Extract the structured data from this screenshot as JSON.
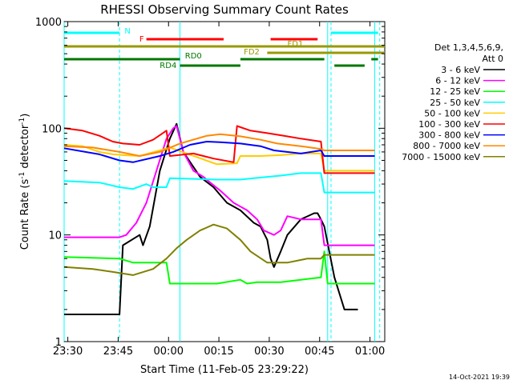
{
  "chart_data": {
    "type": "line",
    "title": "RHESSI Observing Summary Count Rates",
    "xlabel": "Start Time (11-Feb-05 23:29:22)",
    "ylabel_main": "Count Rate (s",
    "ylabel_sup1": "-1",
    "ylabel_mid": " detector",
    "ylabel_sup2": "-1",
    "ylabel_end": ")",
    "y_scale": "log",
    "ylim": [
      1,
      1000
    ],
    "xlim_min": [
      -0.5,
      95
    ],
    "x_ticks": [
      {
        "min": 0.6,
        "label": "23:30"
      },
      {
        "min": 15.6,
        "label": "23:45"
      },
      {
        "min": 30.6,
        "label": "00:00"
      },
      {
        "min": 45.6,
        "label": "00:15"
      },
      {
        "min": 60.6,
        "label": "00:30"
      },
      {
        "min": 75.6,
        "label": "00:45"
      },
      {
        "min": 90.6,
        "label": "01:00"
      }
    ],
    "y_ticks": [
      {
        "value": 1,
        "label": "1"
      },
      {
        "value": 10,
        "label": "10"
      },
      {
        "value": 100,
        "label": "100"
      },
      {
        "value": 1000,
        "label": "1000"
      }
    ],
    "legend": {
      "header1": "Det 1,3,4,5,6,9,",
      "header2": "Att 0",
      "placement": "right"
    },
    "series": [
      {
        "name": "3 - 6 keV",
        "color": "#000000",
        "points": [
          [
            -0.5,
            1.8
          ],
          [
            16,
            1.8
          ],
          [
            17,
            8
          ],
          [
            22,
            10
          ],
          [
            23,
            8
          ],
          [
            25,
            12
          ],
          [
            28,
            40
          ],
          [
            31,
            80
          ],
          [
            33,
            110
          ],
          [
            35,
            60
          ],
          [
            40,
            35
          ],
          [
            44,
            28
          ],
          [
            48,
            20
          ],
          [
            52,
            17
          ],
          [
            56,
            13
          ],
          [
            58,
            12
          ],
          [
            60,
            9
          ],
          [
            61,
            6
          ],
          [
            62,
            5
          ],
          [
            64,
            7
          ],
          [
            66,
            10
          ],
          [
            70,
            14
          ],
          [
            74,
            16
          ],
          [
            75,
            16
          ],
          [
            76,
            14
          ],
          [
            77,
            12
          ],
          [
            80,
            4
          ],
          [
            83,
            2
          ],
          [
            86,
            2
          ],
          [
            87,
            2
          ]
        ]
      },
      {
        "name": "6 - 12 keV",
        "color": "#ff00ff",
        "points": [
          [
            -0.5,
            9.5
          ],
          [
            16,
            9.5
          ],
          [
            18,
            10
          ],
          [
            21,
            13
          ],
          [
            24,
            20
          ],
          [
            27,
            40
          ],
          [
            30,
            80
          ],
          [
            32,
            100
          ],
          [
            33,
            105
          ],
          [
            35,
            60
          ],
          [
            38,
            40
          ],
          [
            41,
            35
          ],
          [
            43,
            31
          ],
          [
            46,
            26
          ],
          [
            50,
            20
          ],
          [
            54,
            17
          ],
          [
            57,
            14
          ],
          [
            59,
            11
          ],
          [
            62,
            10
          ],
          [
            64,
            11
          ],
          [
            66,
            15
          ],
          [
            70,
            14
          ],
          [
            74,
            14
          ],
          [
            76,
            14
          ],
          [
            77,
            8
          ],
          [
            92,
            8
          ]
        ]
      },
      {
        "name": "12 - 25 keV",
        "color": "#00ff00",
        "points": [
          [
            -0.5,
            6.2
          ],
          [
            16,
            6
          ],
          [
            20,
            5.5
          ],
          [
            30,
            5.5
          ],
          [
            31,
            3.5
          ],
          [
            45,
            3.5
          ],
          [
            52,
            3.8
          ],
          [
            54,
            3.5
          ],
          [
            57,
            3.6
          ],
          [
            60,
            3.6
          ],
          [
            64,
            3.6
          ],
          [
            70,
            3.8
          ],
          [
            76,
            4
          ],
          [
            77,
            7
          ],
          [
            78,
            3.5
          ],
          [
            92,
            3.5
          ]
        ]
      },
      {
        "name": "25 - 50 keV",
        "color": "#00ffff",
        "points": [
          [
            -0.5,
            32
          ],
          [
            10,
            31
          ],
          [
            16,
            28
          ],
          [
            20,
            27
          ],
          [
            24,
            30
          ],
          [
            26,
            28
          ],
          [
            30,
            28
          ],
          [
            31,
            34
          ],
          [
            45,
            33
          ],
          [
            48,
            33
          ],
          [
            52,
            33
          ],
          [
            56,
            34
          ],
          [
            60,
            35
          ],
          [
            64,
            36
          ],
          [
            70,
            38
          ],
          [
            76,
            38
          ],
          [
            77,
            25
          ],
          [
            92,
            25
          ]
        ]
      },
      {
        "name": "50 - 100 keV",
        "color": "#ffcc00",
        "points": [
          [
            -0.5,
            70
          ],
          [
            5,
            68
          ],
          [
            10,
            60
          ],
          [
            14,
            57
          ],
          [
            17,
            56
          ],
          [
            22,
            55
          ],
          [
            28,
            62
          ],
          [
            31,
            66
          ],
          [
            45,
            46
          ],
          [
            51,
            47
          ],
          [
            52,
            55
          ],
          [
            58,
            55
          ],
          [
            64,
            56
          ],
          [
            70,
            58
          ],
          [
            76,
            58
          ],
          [
            77,
            40
          ],
          [
            92,
            40
          ]
        ]
      },
      {
        "name": "100 - 300 keV",
        "color": "#ff0000",
        "points": [
          [
            -0.5,
            100
          ],
          [
            5,
            95
          ],
          [
            10,
            85
          ],
          [
            14,
            75
          ],
          [
            17,
            72
          ],
          [
            22,
            70
          ],
          [
            26,
            78
          ],
          [
            30,
            95
          ],
          [
            31,
            55
          ],
          [
            38,
            58
          ],
          [
            44,
            52
          ],
          [
            50,
            48
          ],
          [
            51,
            105
          ],
          [
            55,
            95
          ],
          [
            60,
            90
          ],
          [
            65,
            85
          ],
          [
            70,
            80
          ],
          [
            76,
            75
          ],
          [
            77,
            38
          ],
          [
            92,
            38
          ]
        ]
      },
      {
        "name": "300 - 800 keV",
        "color": "#0000ff",
        "points": [
          [
            -0.5,
            65
          ],
          [
            10,
            57
          ],
          [
            16,
            50
          ],
          [
            20,
            48
          ],
          [
            28,
            55
          ],
          [
            32,
            60
          ],
          [
            37,
            70
          ],
          [
            42,
            75
          ],
          [
            46,
            74
          ],
          [
            52,
            72
          ],
          [
            58,
            68
          ],
          [
            62,
            62
          ],
          [
            70,
            58
          ],
          [
            76,
            62
          ],
          [
            77,
            55
          ],
          [
            92,
            55
          ]
        ]
      },
      {
        "name": "800 - 7000 keV",
        "color": "#ff8800",
        "points": [
          [
            -0.5,
            68
          ],
          [
            8,
            66
          ],
          [
            16,
            60
          ],
          [
            22,
            55
          ],
          [
            28,
            60
          ],
          [
            34,
            72
          ],
          [
            42,
            85
          ],
          [
            46,
            88
          ],
          [
            52,
            84
          ],
          [
            58,
            78
          ],
          [
            63,
            72
          ],
          [
            70,
            68
          ],
          [
            76,
            64
          ],
          [
            77,
            62
          ],
          [
            92,
            62
          ]
        ]
      },
      {
        "name": "7000 - 15000 keV",
        "color": "#808000",
        "points": [
          [
            -0.5,
            5
          ],
          [
            8,
            4.8
          ],
          [
            14,
            4.5
          ],
          [
            20,
            4.2
          ],
          [
            26,
            4.8
          ],
          [
            30,
            6
          ],
          [
            33,
            7.5
          ],
          [
            36,
            9
          ],
          [
            40,
            11
          ],
          [
            44,
            12.5
          ],
          [
            48,
            11.5
          ],
          [
            52,
            9
          ],
          [
            55,
            7
          ],
          [
            60,
            5.5
          ],
          [
            66,
            5.5
          ],
          [
            72,
            6
          ],
          [
            76,
            6
          ],
          [
            77,
            6.5
          ],
          [
            92,
            6.5
          ]
        ]
      }
    ],
    "annotations": [
      {
        "label": "N",
        "color": "#00ffff",
        "segments": [
          [
            -0.5,
            16
          ],
          [
            79,
            93
          ]
        ],
        "tier": 0
      },
      {
        "label": "F",
        "color": "#ff0000",
        "segments": [
          [
            24,
            47
          ],
          [
            61,
            75
          ]
        ],
        "tier": 1
      },
      {
        "label": "FD1",
        "color": "#999900",
        "segments": [
          [
            -0.5,
            95
          ]
        ],
        "tier": 2
      },
      {
        "label": "FD2",
        "color": "#999900",
        "segments": [
          [
            60,
            95
          ]
        ],
        "tier": 3
      },
      {
        "label": "RD0",
        "color": "#007700",
        "segments": [
          [
            -0.5,
            34
          ],
          [
            52,
            77
          ],
          [
            91,
            93
          ]
        ],
        "tier": 4
      },
      {
        "label": "RD4",
        "color": "#007700",
        "segments": [
          [
            34,
            52
          ],
          [
            80,
            89
          ]
        ],
        "tier": 5
      }
    ],
    "vlines_solid": [
      -0.5,
      34,
      78,
      92
    ],
    "vlines_dashed": [
      16,
      79,
      93.5
    ],
    "grid": false
  },
  "timestamp": "14-Oct-2021 19:39"
}
